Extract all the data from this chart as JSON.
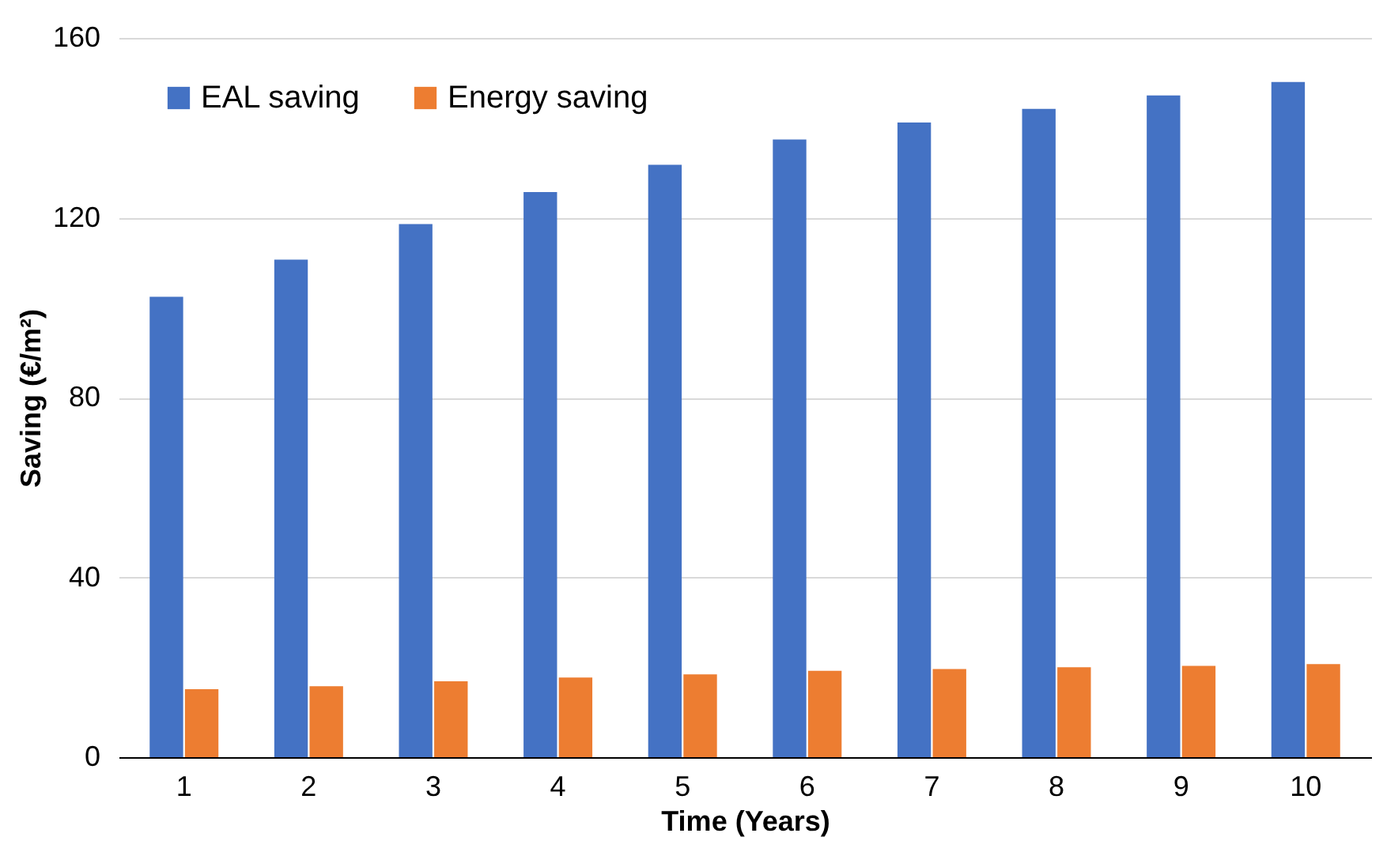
{
  "chart_data": {
    "type": "bar",
    "xlabel": "Time (Years)",
    "ylabel": "Saving (€/m²)",
    "categories": [
      "1",
      "2",
      "3",
      "4",
      "5",
      "6",
      "7",
      "8",
      "9",
      "10"
    ],
    "series": [
      {
        "name": "EAL saving",
        "color": "#4472c4",
        "values": [
          102.4,
          110.7,
          118.6,
          125.7,
          131.8,
          137.4,
          141.2,
          144.2,
          147.2,
          150.2
        ]
      },
      {
        "name": "Energy saving",
        "color": "#ed7d31",
        "values": [
          15.1,
          15.8,
          16.9,
          17.7,
          18.4,
          19.2,
          19.6,
          20.0,
          20.3,
          20.7
        ]
      }
    ],
    "ylim": [
      0,
      160
    ],
    "yticks": [
      0,
      40,
      80,
      120,
      160
    ],
    "grid": "y",
    "legend": "top left"
  }
}
